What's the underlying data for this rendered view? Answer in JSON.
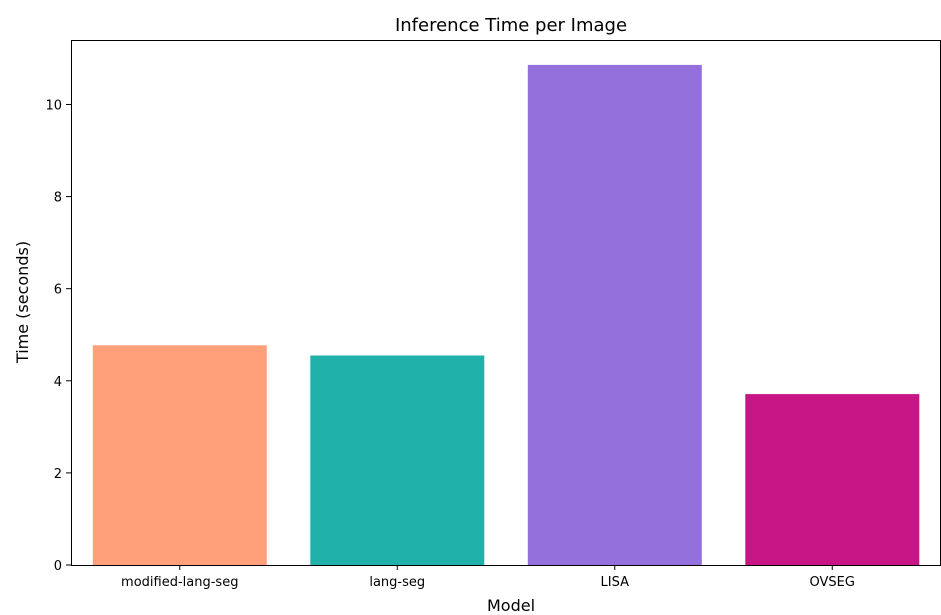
{
  "chart_data": {
    "type": "bar",
    "title": "Inference Time per Image",
    "xlabel": "Model",
    "ylabel": "Time (seconds)",
    "categories": [
      "modified-lang-seg",
      "lang-seg",
      "LISA",
      "OVSEG"
    ],
    "values": [
      4.77,
      4.55,
      10.86,
      3.71
    ],
    "colors": [
      "#ffa07a",
      "#20b2aa",
      "#9370db",
      "#c71585"
    ],
    "ylim": [
      0,
      11.4
    ],
    "yticks": [
      0,
      2,
      4,
      6,
      8,
      10
    ],
    "grid": false,
    "legend": "none"
  }
}
